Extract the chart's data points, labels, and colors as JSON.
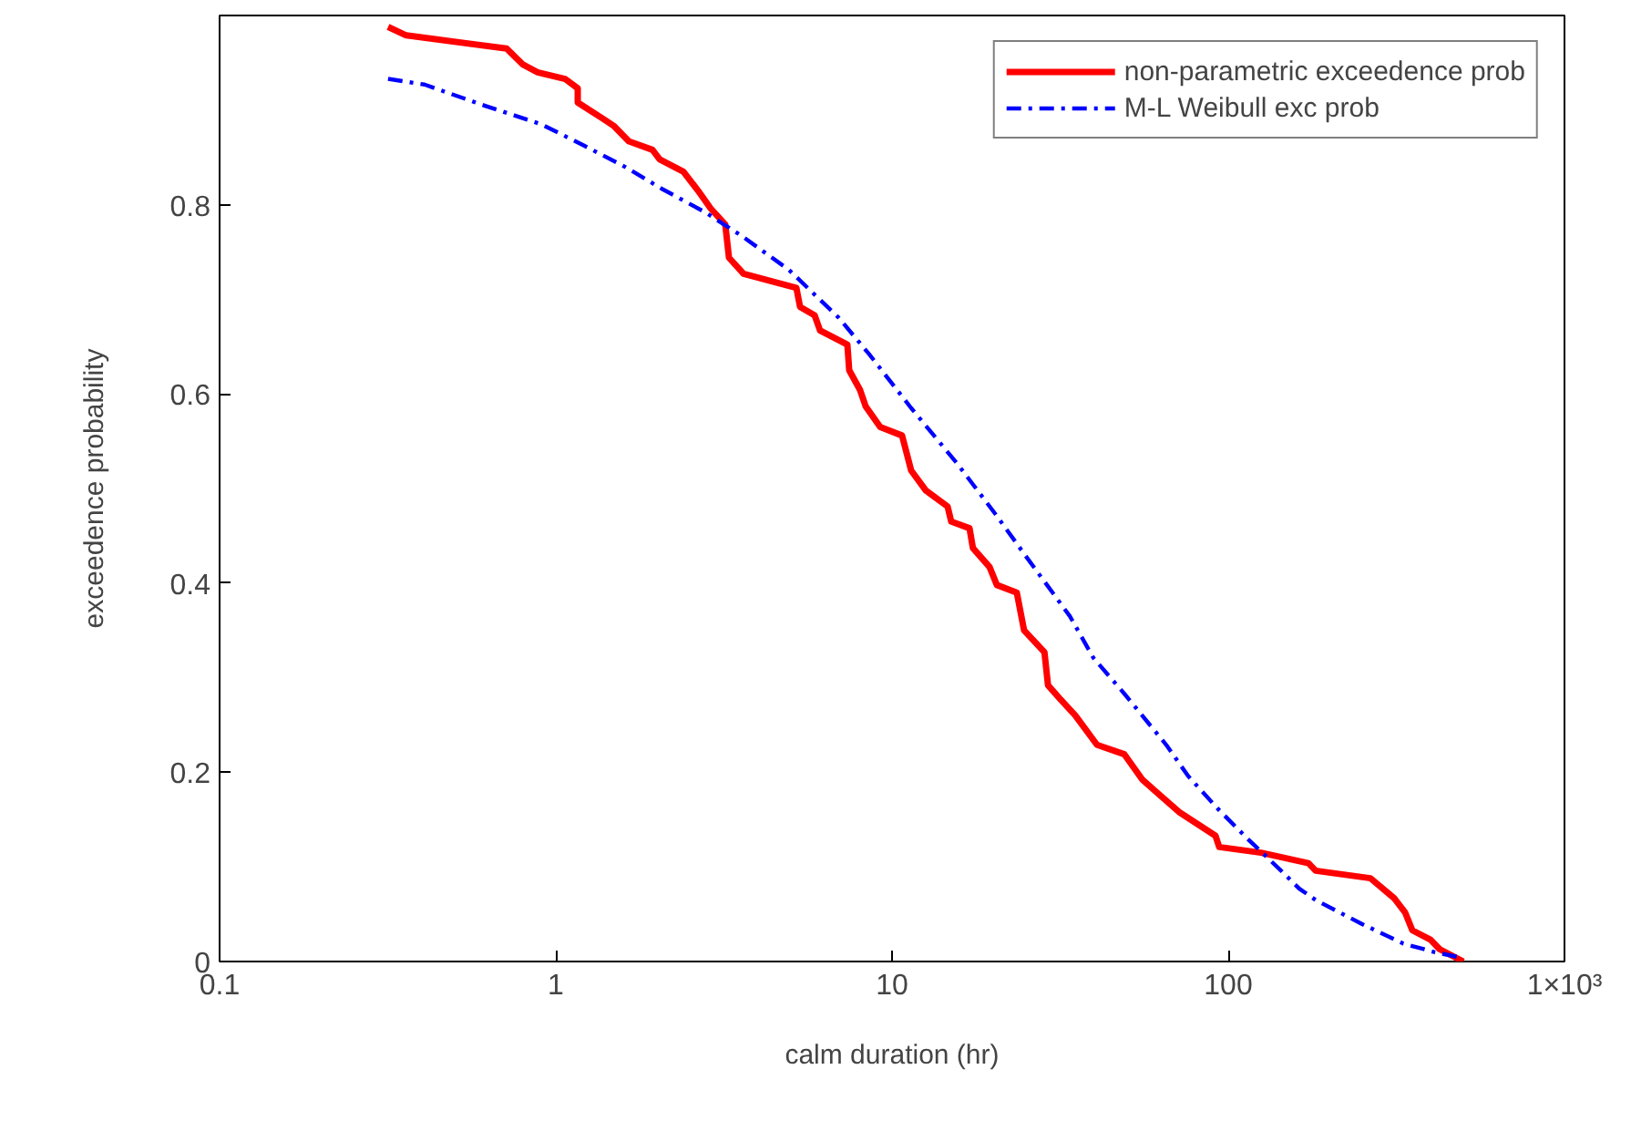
{
  "chart_data": {
    "type": "line",
    "xlabel": "calm duration (hr)",
    "ylabel": "exceedence probability",
    "log": "x",
    "xlim": [
      0.1,
      1000
    ],
    "ylim": [
      0,
      1
    ],
    "xticks": [
      0.1,
      1,
      10,
      100,
      {
        "value": 1000,
        "label": "1×10³"
      }
    ],
    "yticks": [
      0,
      0.2,
      0.4,
      0.6,
      0.8
    ],
    "grid": false,
    "legend": "top right",
    "marker": "none",
    "series": [
      {
        "name": "non-parametric exceedence prob",
        "color": "#ff0000",
        "line_style": "solid",
        "x": [
          0.317,
          0.359,
          0.714,
          0.799,
          0.883,
          1.065,
          1.162,
          1.162,
          1.366,
          1.491,
          1.648,
          1.938,
          2.037,
          2.396,
          2.647,
          2.888,
          3.192,
          3.273,
          3.617,
          5.194,
          5.326,
          5.886,
          6.108,
          7.366,
          7.458,
          8.036,
          8.343,
          9.22,
          10.71,
          11.4,
          12.6,
          14.63,
          15.0,
          17.0,
          17.4,
          19.5,
          20.5,
          23.5,
          24.7,
          28.4,
          29.1,
          31.7,
          35.1,
          40.7,
          49.1,
          55.6,
          71.4,
          91.6,
          94.0,
          125.2,
          173.2,
          182.0,
          264.8,
          311.3,
          335.6,
          352.7,
          399.7,
          425.4,
          500.2
        ],
        "values": [
          0.988,
          0.979,
          0.965,
          0.948,
          0.94,
          0.933,
          0.923,
          0.908,
          0.892,
          0.883,
          0.867,
          0.858,
          0.848,
          0.835,
          0.815,
          0.796,
          0.779,
          0.744,
          0.727,
          0.712,
          0.692,
          0.683,
          0.667,
          0.652,
          0.625,
          0.604,
          0.587,
          0.565,
          0.556,
          0.519,
          0.498,
          0.481,
          0.465,
          0.458,
          0.437,
          0.417,
          0.398,
          0.39,
          0.35,
          0.327,
          0.292,
          0.277,
          0.26,
          0.229,
          0.219,
          0.192,
          0.158,
          0.133,
          0.121,
          0.115,
          0.104,
          0.096,
          0.088,
          0.067,
          0.052,
          0.033,
          0.023,
          0.013,
          0.0
        ]
      },
      {
        "name": "M-L Weibull exc prob",
        "color": "#0000ff",
        "line_style": "dashdot",
        "x": [
          0.317,
          0.407,
          0.622,
          0.905,
          1.206,
          1.607,
          2.063,
          2.782,
          3.572,
          4.94,
          6.92,
          8.55,
          11.4,
          15.57,
          20.5,
          24.7,
          33.8,
          39.7,
          49.1,
          65.4,
          76.0,
          92.8,
          114.7,
          143.6,
          162.7,
          182.0,
          248.7,
          331.4,
          409.9,
          494.1
        ],
        "values": [
          0.933,
          0.927,
          0.904,
          0.885,
          0.863,
          0.84,
          0.817,
          0.792,
          0.767,
          0.731,
          0.681,
          0.642,
          0.585,
          0.527,
          0.471,
          0.431,
          0.365,
          0.321,
          0.283,
          0.229,
          0.196,
          0.162,
          0.129,
          0.096,
          0.077,
          0.065,
          0.04,
          0.019,
          0.01,
          0.004
        ]
      }
    ]
  }
}
